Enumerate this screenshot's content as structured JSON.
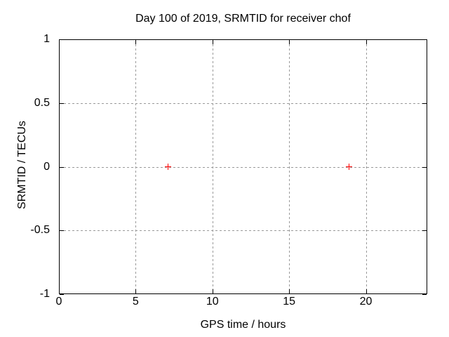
{
  "chart_data": {
    "type": "scatter",
    "title": "Day 100 of 2019, SRMTID for receiver chof",
    "xlabel": "GPS time / hours",
    "ylabel": "SRMTID / TECUs",
    "xlim": [
      0,
      24
    ],
    "ylim": [
      -1,
      1
    ],
    "xticks": [
      0,
      5,
      10,
      15,
      20
    ],
    "yticks": [
      1,
      0.5,
      0,
      -0.5,
      -1
    ],
    "grid": true,
    "legend": false,
    "series": [
      {
        "marker": "plus",
        "color": "#ff0000",
        "points": [
          [
            7.1,
            0
          ],
          [
            18.9,
            0
          ]
        ]
      }
    ]
  },
  "colors": {
    "background": "#ffffff",
    "border": "#000000",
    "grid": "#9a9a9a",
    "text": "#000000",
    "marker": "#ff0000"
  }
}
